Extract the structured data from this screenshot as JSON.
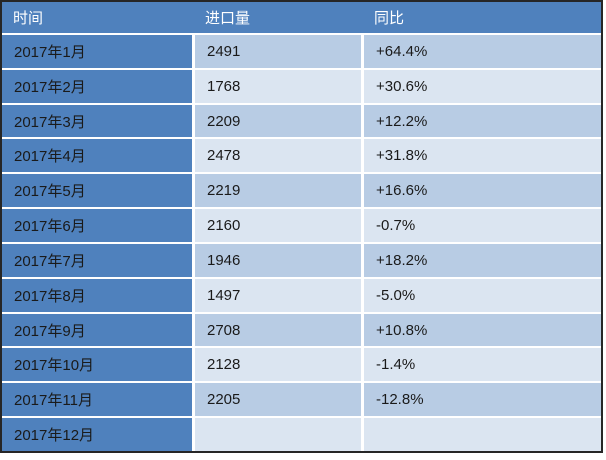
{
  "chart_data": {
    "type": "table",
    "title": "",
    "columns": [
      "时间",
      "进口量",
      "同比"
    ],
    "rows": [
      [
        "2017年1月",
        "2491",
        "+64.4%"
      ],
      [
        "2017年2月",
        "1768",
        "+30.6%"
      ],
      [
        "2017年3月",
        "2209",
        "+12.2%"
      ],
      [
        "2017年4月",
        "2478",
        "+31.8%"
      ],
      [
        "2017年5月",
        "2219",
        "+16.6%"
      ],
      [
        "2017年6月",
        "2160",
        "-0.7%"
      ],
      [
        "2017年7月",
        "1946",
        "+18.2%"
      ],
      [
        "2017年8月",
        "1497",
        "-5.0%"
      ],
      [
        "2017年9月",
        "2708",
        "+10.8%"
      ],
      [
        "2017年10月",
        "2128",
        "-1.4%"
      ],
      [
        "2017年11月",
        "2205",
        "-12.8%"
      ],
      [
        "2017年12月",
        "",
        ""
      ]
    ]
  },
  "colors": {
    "border": "#262626",
    "separator": "#ffffff",
    "header_bg": "#4f81bd",
    "header_text": "#ffffff",
    "first_col_bg": "#4f81bd",
    "row_odd_bg": "#b8cce4",
    "row_even_bg": "#dbe5f1",
    "body_text": "#1a1a1a"
  }
}
